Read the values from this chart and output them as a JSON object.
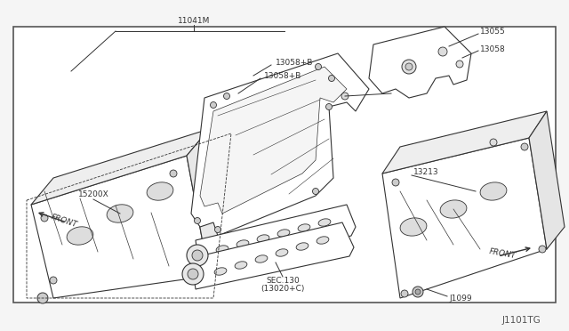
{
  "bg_color": "#f5f5f5",
  "border_color": "#333333",
  "line_color": "#333333",
  "title_code": "J1101TG",
  "part_11041M": "11041M",
  "part_13055": "13055",
  "part_13058": "13058",
  "part_13058B_1": "13058+B",
  "part_13058B_2": "13058+B",
  "part_15200X": "15200X",
  "part_SEC130": "SEC.130",
  "part_13020C": "(13020+C)",
  "part_13213": "13213",
  "part_J1099": "J1099",
  "front_label": "FRONT",
  "font_size_label": 6.5,
  "font_size_part": 6.0,
  "font_size_code": 7.5
}
